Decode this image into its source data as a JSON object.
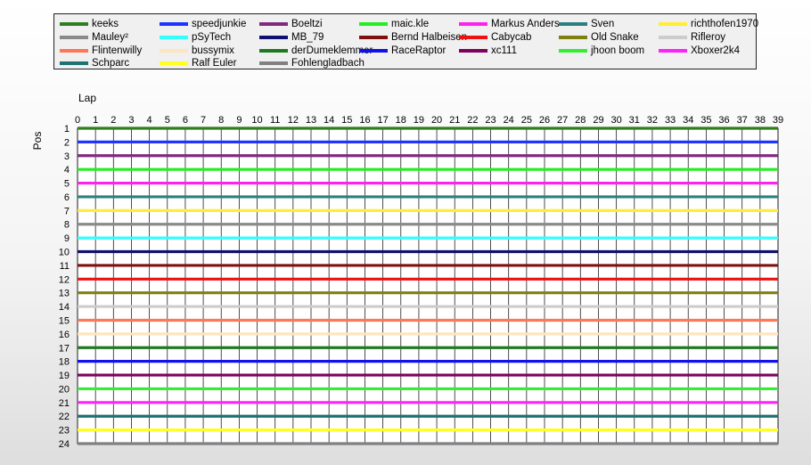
{
  "chart_data": {
    "type": "line",
    "xlabel": "Lap",
    "ylabel": "Pos",
    "xlim": [
      0,
      39
    ],
    "ylim": [
      1,
      24
    ],
    "y_inverted": true,
    "grid": true,
    "x_ticks": [
      "0",
      "1",
      "2",
      "3",
      "4",
      "5",
      "6",
      "7",
      "8",
      "9",
      "10",
      "11",
      "12",
      "13",
      "14",
      "15",
      "16",
      "17",
      "18",
      "19",
      "20",
      "21",
      "22",
      "23",
      "24",
      "25",
      "26",
      "27",
      "28",
      "29",
      "30",
      "31",
      "32",
      "33",
      "34",
      "35",
      "36",
      "37",
      "38",
      "39"
    ],
    "y_ticks": [
      "1",
      "2",
      "3",
      "4",
      "5",
      "6",
      "7",
      "8",
      "9",
      "10",
      "11",
      "12",
      "13",
      "14",
      "15",
      "16",
      "17",
      "18",
      "19",
      "20",
      "21",
      "22",
      "23",
      "24"
    ],
    "legend_position": "top",
    "series": [
      {
        "name": "keeks",
        "color": "#2E7D1F",
        "values": [
          1,
          1,
          1,
          1,
          1,
          1,
          1,
          1,
          1,
          1,
          1,
          1,
          1,
          1,
          1,
          1,
          1,
          1,
          1,
          1,
          1,
          1,
          1,
          1,
          1,
          1,
          1,
          1,
          1,
          1,
          1,
          1,
          1,
          1,
          1,
          1,
          1,
          1,
          1,
          1
        ]
      },
      {
        "name": "speedjunkie",
        "color": "#1F35FF",
        "values": [
          2,
          2,
          2,
          2,
          2,
          2,
          2,
          2,
          2,
          2,
          2,
          2,
          2,
          2,
          2,
          2,
          2,
          2,
          2,
          2,
          2,
          2,
          2,
          2,
          2,
          2,
          2,
          2,
          2,
          2,
          2,
          2,
          2,
          2,
          2,
          2,
          2,
          2,
          2,
          2
        ]
      },
      {
        "name": "Boeltzi",
        "color": "#7F2A7F",
        "values": [
          3,
          3,
          3,
          3,
          3,
          3,
          3,
          3,
          3,
          3,
          3,
          3,
          3,
          3,
          3,
          3,
          3,
          3,
          3,
          3,
          3,
          3,
          3,
          3,
          3,
          3,
          3,
          3,
          3,
          3,
          3,
          3,
          3,
          3,
          3,
          3,
          3,
          3,
          3,
          3
        ]
      },
      {
        "name": "maic.kle",
        "color": "#22EE22",
        "values": [
          4,
          4,
          4,
          4,
          4,
          4,
          4,
          4,
          4,
          4,
          4,
          4,
          4,
          4,
          4,
          4,
          4,
          4,
          4,
          4,
          4,
          4,
          4,
          4,
          4,
          4,
          4,
          4,
          4,
          4,
          4,
          4,
          4,
          4,
          4,
          4,
          4,
          4,
          4,
          4
        ]
      },
      {
        "name": "Markus Anders",
        "color": "#FF22EE",
        "values": [
          5,
          5,
          5,
          5,
          5,
          5,
          5,
          5,
          5,
          5,
          5,
          5,
          5,
          5,
          5,
          5,
          5,
          5,
          5,
          5,
          5,
          5,
          5,
          5,
          5,
          5,
          5,
          5,
          5,
          5,
          5,
          5,
          5,
          5,
          5,
          5,
          5,
          5,
          5,
          5
        ]
      },
      {
        "name": "Sven",
        "color": "#2A8080",
        "values": [
          6,
          6,
          6,
          6,
          6,
          6,
          6,
          6,
          6,
          6,
          6,
          6,
          6,
          6,
          6,
          6,
          6,
          6,
          6,
          6,
          6,
          6,
          6,
          6,
          6,
          6,
          6,
          6,
          6,
          6,
          6,
          6,
          6,
          6,
          6,
          6,
          6,
          6,
          6,
          6
        ]
      },
      {
        "name": "richthofen1970",
        "color": "#FFEE33",
        "values": [
          7,
          7,
          7,
          7,
          7,
          7,
          7,
          7,
          7,
          7,
          7,
          7,
          7,
          7,
          7,
          7,
          7,
          7,
          7,
          7,
          7,
          7,
          7,
          7,
          7,
          7,
          7,
          7,
          7,
          7,
          7,
          7,
          7,
          7,
          7,
          7,
          7,
          7,
          7,
          7
        ]
      },
      {
        "name": "Mauley²",
        "color": "#8A8A8A",
        "values": [
          8,
          8,
          8,
          8,
          8,
          8,
          8,
          8,
          8,
          8,
          8,
          8,
          8,
          8,
          8,
          8,
          8,
          8,
          8,
          8,
          8,
          8,
          8,
          8,
          8,
          8,
          8,
          8,
          8,
          8,
          8,
          8,
          8,
          8,
          8,
          8,
          8,
          8,
          8,
          8
        ]
      },
      {
        "name": "pSyTech",
        "color": "#33FFFF",
        "values": [
          9,
          9,
          9,
          9,
          9,
          9,
          9,
          9,
          9,
          9,
          9,
          9,
          9,
          9,
          9,
          9,
          9,
          9,
          9,
          9,
          9,
          9,
          9,
          9,
          9,
          9,
          9,
          9,
          9,
          9,
          9,
          9,
          9,
          9,
          9,
          9,
          9,
          9,
          9,
          9
        ]
      },
      {
        "name": "MB_79",
        "color": "#101070",
        "values": [
          10,
          10,
          10,
          10,
          10,
          10,
          10,
          10,
          10,
          10,
          10,
          10,
          10,
          10,
          10,
          10,
          10,
          10,
          10,
          10,
          10,
          10,
          10,
          10,
          10,
          10,
          10,
          10,
          10,
          10,
          10,
          10,
          10,
          10,
          10,
          10,
          10,
          10,
          10,
          10
        ]
      },
      {
        "name": "Bernd Halbeisen",
        "color": "#7F1010",
        "values": [
          11,
          11,
          11,
          11,
          11,
          11,
          11,
          11,
          11,
          11,
          11,
          11,
          11,
          11,
          11,
          11,
          11,
          11,
          11,
          11,
          11,
          11,
          11,
          11,
          11,
          11,
          11,
          11,
          11,
          11,
          11,
          11,
          11,
          11,
          11,
          11,
          11,
          11,
          11,
          11
        ]
      },
      {
        "name": "Cabycab",
        "color": "#EE1111",
        "values": [
          12,
          12,
          12,
          12,
          12,
          12,
          12,
          12,
          12,
          12,
          12,
          12,
          12,
          12,
          12,
          12,
          12,
          12,
          12,
          12,
          12,
          12,
          12,
          12,
          12,
          12,
          12,
          12,
          12,
          12,
          12,
          12,
          12,
          12,
          12,
          12,
          12,
          12,
          12,
          12
        ]
      },
      {
        "name": "Old Snake",
        "color": "#808010",
        "values": [
          13,
          13,
          13,
          13,
          13,
          13,
          13,
          13,
          13,
          13,
          13,
          13,
          13,
          13,
          13,
          13,
          13,
          13,
          13,
          13,
          13,
          13,
          13,
          13,
          13,
          13,
          13,
          13,
          13,
          13,
          13,
          13,
          13,
          13,
          13,
          13,
          13,
          13,
          13,
          13
        ]
      },
      {
        "name": "Rifleroy",
        "color": "#CCCCCC",
        "values": [
          14,
          14,
          14,
          14,
          14,
          14,
          14,
          14,
          14,
          14,
          14,
          14,
          14,
          14,
          14,
          14,
          14,
          14,
          14,
          14,
          14,
          14,
          14,
          14,
          14,
          14,
          14,
          14,
          14,
          14,
          14,
          14,
          14,
          14,
          14,
          14,
          14,
          14,
          14,
          14
        ]
      },
      {
        "name": "Flintenwilly",
        "color": "#FF7755",
        "values": [
          15,
          15,
          15,
          15,
          15,
          15,
          15,
          15,
          15,
          15,
          15,
          15,
          15,
          15,
          15,
          15,
          15,
          15,
          15,
          15,
          15,
          15,
          15,
          15,
          15,
          15,
          15,
          15,
          15,
          15,
          15,
          15,
          15,
          15,
          15,
          15,
          15,
          15,
          15,
          15
        ]
      },
      {
        "name": "bussymix",
        "color": "#FFE4C0",
        "values": [
          16,
          16,
          16,
          16,
          16,
          16,
          16,
          16,
          16,
          16,
          16,
          16,
          16,
          16,
          16,
          16,
          16,
          16,
          16,
          16,
          16,
          16,
          16,
          16,
          16,
          16,
          16,
          16,
          16,
          16,
          16,
          16,
          16,
          16,
          16,
          16,
          16,
          16,
          16,
          16
        ]
      },
      {
        "name": "derDumeklemmer",
        "color": "#1F7A1F",
        "values": [
          17,
          17,
          17,
          17,
          17,
          17,
          17,
          17,
          17,
          17,
          17,
          17,
          17,
          17,
          17,
          17,
          17,
          17,
          17,
          17,
          17,
          17,
          17,
          17,
          17,
          17,
          17,
          17,
          17,
          17,
          17,
          17,
          17,
          17,
          17,
          17,
          17,
          17,
          17,
          17
        ]
      },
      {
        "name": "RaceRaptor",
        "color": "#1111EE",
        "values": [
          18,
          18,
          18,
          18,
          18,
          18,
          18,
          18,
          18,
          18,
          18,
          18,
          18,
          18,
          18,
          18,
          18,
          18,
          18,
          18,
          18,
          18,
          18,
          18,
          18,
          18,
          18,
          18,
          18,
          18,
          18,
          18,
          18,
          18,
          18,
          18,
          18,
          18,
          18,
          18
        ]
      },
      {
        "name": "xc111",
        "color": "#800060",
        "values": [
          19,
          19,
          19,
          19,
          19,
          19,
          19,
          19,
          19,
          19,
          19,
          19,
          19,
          19,
          19,
          19,
          19,
          19,
          19,
          19,
          19,
          19,
          19,
          19,
          19,
          19,
          19,
          19,
          19,
          19,
          19,
          19,
          19,
          19,
          19,
          19,
          19,
          19,
          19,
          19
        ]
      },
      {
        "name": "jhoon boom",
        "color": "#33EE33",
        "values": [
          20,
          20,
          20,
          20,
          20,
          20,
          20,
          20,
          20,
          20,
          20,
          20,
          20,
          20,
          20,
          20,
          20,
          20,
          20,
          20,
          20,
          20,
          20,
          20,
          20,
          20,
          20,
          20,
          20,
          20,
          20,
          20,
          20,
          20,
          20,
          20,
          20,
          20,
          20,
          20
        ]
      },
      {
        "name": "Xboxer2k4",
        "color": "#FF22FF",
        "values": [
          21,
          21,
          21,
          21,
          21,
          21,
          21,
          21,
          21,
          21,
          21,
          21,
          21,
          21,
          21,
          21,
          21,
          21,
          21,
          21,
          21,
          21,
          21,
          21,
          21,
          21,
          21,
          21,
          21,
          21,
          21,
          21,
          21,
          21,
          21,
          21,
          21,
          21,
          21,
          21
        ]
      },
      {
        "name": "Schparc",
        "color": "#1F7070",
        "values": [
          22,
          22,
          22,
          22,
          22,
          22,
          22,
          22,
          22,
          22,
          22,
          22,
          22,
          22,
          22,
          22,
          22,
          22,
          22,
          22,
          22,
          22,
          22,
          22,
          22,
          22,
          22,
          22,
          22,
          22,
          22,
          22,
          22,
          22,
          22,
          22,
          22,
          22,
          22,
          22
        ]
      },
      {
        "name": "Ralf Euler",
        "color": "#FFFF22",
        "values": [
          23,
          23,
          23,
          23,
          23,
          23,
          23,
          23,
          23,
          23,
          23,
          23,
          23,
          23,
          23,
          23,
          23,
          23,
          23,
          23,
          23,
          23,
          23,
          23,
          23,
          23,
          23,
          23,
          23,
          23,
          23,
          23,
          23,
          23,
          23,
          23,
          23,
          23,
          23,
          23
        ]
      },
      {
        "name": "Fohlengladbach",
        "color": "#808080",
        "values": [
          24,
          24,
          24,
          24,
          24,
          24,
          24,
          24,
          24,
          24,
          24,
          24,
          24,
          24,
          24,
          24,
          24,
          24,
          24,
          24,
          24,
          24,
          24,
          24,
          24,
          24,
          24,
          24,
          24,
          24,
          24,
          24,
          24,
          24,
          24,
          24,
          24,
          24,
          24,
          24
        ]
      }
    ]
  }
}
